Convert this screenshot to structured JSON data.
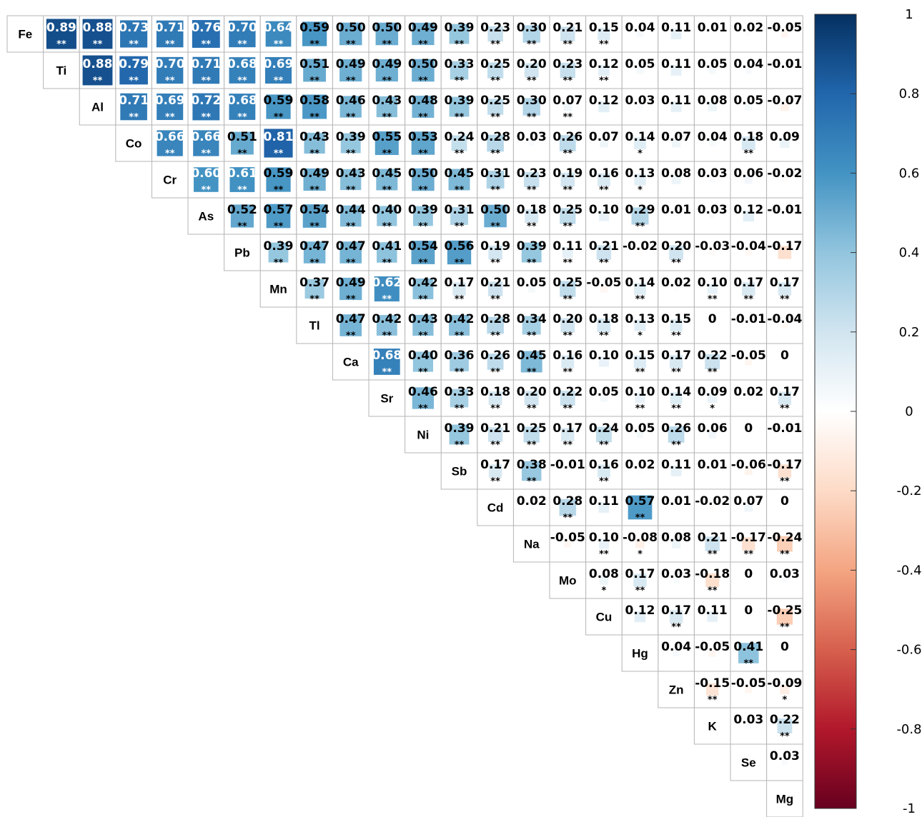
{
  "chart_data": {
    "type": "heatmap",
    "title": "",
    "variables": [
      "Fe",
      "Ti",
      "Al",
      "Co",
      "Cr",
      "As",
      "Pb",
      "Mn",
      "Tl",
      "Ca",
      "Sr",
      "Ni",
      "Sb",
      "Cd",
      "Na",
      "Mo",
      "Cu",
      "Hg",
      "Zn",
      "K",
      "Se",
      "Mg"
    ],
    "values": [
      [
        0.89,
        0.88,
        0.73,
        0.71,
        0.76,
        0.7,
        0.64,
        0.59,
        0.5,
        0.5,
        0.49,
        0.39,
        0.23,
        0.3,
        0.21,
        0.15,
        0.04,
        0.11,
        0.01,
        0.02,
        -0.05
      ],
      [
        0.88,
        0.79,
        0.7,
        0.71,
        0.68,
        0.69,
        0.51,
        0.49,
        0.49,
        0.5,
        0.33,
        0.25,
        0.2,
        0.23,
        0.12,
        0.05,
        0.11,
        0.05,
        0.04,
        -0.01
      ],
      [
        0.71,
        0.69,
        0.72,
        0.68,
        0.59,
        0.58,
        0.46,
        0.43,
        0.48,
        0.39,
        0.25,
        0.3,
        0.07,
        0.12,
        0.03,
        0.11,
        0.08,
        0.05,
        -0.07
      ],
      [
        0.66,
        0.66,
        0.51,
        0.81,
        0.43,
        0.39,
        0.55,
        0.53,
        0.24,
        0.28,
        0.03,
        0.26,
        0.07,
        0.14,
        0.07,
        0.04,
        0.18,
        0.09
      ],
      [
        0.6,
        0.61,
        0.59,
        0.49,
        0.43,
        0.45,
        0.5,
        0.45,
        0.31,
        0.23,
        0.19,
        0.16,
        0.13,
        0.08,
        0.03,
        0.06,
        -0.02
      ],
      [
        0.52,
        0.57,
        0.54,
        0.44,
        0.4,
        0.39,
        0.31,
        0.5,
        0.18,
        0.25,
        0.1,
        0.29,
        0.01,
        0.03,
        0.12,
        -0.01
      ],
      [
        0.39,
        0.47,
        0.47,
        0.41,
        0.54,
        0.56,
        0.19,
        0.39,
        0.11,
        0.21,
        -0.02,
        0.2,
        -0.03,
        -0.04,
        -0.17
      ],
      [
        0.37,
        0.49,
        0.62,
        0.42,
        0.17,
        0.21,
        0.05,
        0.25,
        -0.05,
        0.14,
        0.02,
        0.1,
        0.17,
        0.17
      ],
      [
        0.47,
        0.42,
        0.43,
        0.42,
        0.28,
        0.34,
        0.2,
        0.18,
        0.13,
        0.15,
        0,
        -0.01,
        -0.04
      ],
      [
        0.68,
        0.4,
        0.36,
        0.26,
        0.45,
        0.16,
        0.1,
        0.15,
        0.17,
        0.22,
        -0.05,
        0
      ],
      [
        0.46,
        0.33,
        0.18,
        0.2,
        0.22,
        0.05,
        0.1,
        0.14,
        0.09,
        0.02,
        0.17
      ],
      [
        0.39,
        0.21,
        0.25,
        0.17,
        0.24,
        0.05,
        0.26,
        0.06,
        0,
        -0.01
      ],
      [
        0.17,
        0.38,
        -0.01,
        0.16,
        0.02,
        0.11,
        0.01,
        -0.06,
        -0.17
      ],
      [
        0.02,
        0.28,
        0.11,
        0.57,
        0.01,
        -0.02,
        0.07,
        0
      ],
      [
        -0.05,
        0.1,
        -0.08,
        0.08,
        0.21,
        -0.17,
        -0.24
      ],
      [
        0.08,
        0.17,
        0.03,
        -0.18,
        0,
        0.03
      ],
      [
        0.12,
        0.17,
        0.11,
        0,
        -0.25
      ],
      [
        0.04,
        -0.05,
        0.41,
        0
      ],
      [
        -0.15,
        -0.05,
        -0.09
      ],
      [
        0.03,
        0.22
      ],
      [
        0.03
      ]
    ],
    "labels": [
      [
        "0.89",
        "0.88",
        "0.73",
        "0.71",
        "0.76",
        "0.70",
        "0.64",
        "0.59",
        "0.50",
        "0.50",
        "0.49",
        "0.39",
        "0.23",
        "0.30",
        "0.21",
        "0.15",
        "0.04",
        "0.11",
        "0.01",
        "0.02",
        "-0.05"
      ],
      [
        "0.88",
        "0.79",
        "0.70",
        "0.71",
        "0.68",
        "0.69",
        "0.51",
        "0.49",
        "0.49",
        "0.50",
        "0.33",
        "0.25",
        "0.20",
        "0.23",
        "0.12",
        "0.05",
        "0.11",
        "0.05",
        "0.04",
        "-0.01"
      ],
      [
        "0.71",
        "0.69",
        "0.72",
        "0.68",
        "0.59",
        "0.58",
        "0.46",
        "0.43",
        "0.48",
        "0.39",
        "0.25",
        "0.30",
        "0.07",
        "0.12",
        "0.03",
        "0.11",
        "0.08",
        "0.05",
        "-0.07"
      ],
      [
        "0.66",
        "0.66",
        "0.51",
        "0.81",
        "0.43",
        "0.39",
        "0.55",
        "0.53",
        "0.24",
        "0.28",
        "0.03",
        "0.26",
        "0.07",
        "0.14",
        "0.07",
        "0.04",
        "0.18",
        "0.09"
      ],
      [
        "0.60",
        "0.61",
        "0.59",
        "0.49",
        "0.43",
        "0.45",
        "0.50",
        "0.45",
        "0.31",
        "0.23",
        "0.19",
        "0.16",
        "0.13",
        "0.08",
        "0.03",
        "0.06",
        "-0.02"
      ],
      [
        "0.52",
        "0.57",
        "0.54",
        "0.44",
        "0.40",
        "0.39",
        "0.31",
        "0.50",
        "0.18",
        "0.25",
        "0.10",
        "0.29",
        "0.01",
        "0.03",
        "0.12",
        "-0.01"
      ],
      [
        "0.39",
        "0.47",
        "0.47",
        "0.41",
        "0.54",
        "0.56",
        "0.19",
        "0.39",
        "0.11",
        "0.21",
        "-0.02",
        "0.20",
        "-0.03",
        "-0.04",
        "-0.17"
      ],
      [
        "0.37",
        "0.49",
        "0.62",
        "0.42",
        "0.17",
        "0.21",
        "0.05",
        "0.25",
        "-0.05",
        "0.14",
        "0.02",
        "0.10",
        "0.17",
        "0.17"
      ],
      [
        "0.47",
        "0.42",
        "0.43",
        "0.42",
        "0.28",
        "0.34",
        "0.20",
        "0.18",
        "0.13",
        "0.15",
        "0",
        "-0.01",
        "-0.04"
      ],
      [
        "0.68",
        "0.40",
        "0.36",
        "0.26",
        "0.45",
        "0.16",
        "0.10",
        "0.15",
        "0.17",
        "0.22",
        "-0.05",
        "0"
      ],
      [
        "0.46",
        "0.33",
        "0.18",
        "0.20",
        "0.22",
        "0.05",
        "0.10",
        "0.14",
        "0.09",
        "0.02",
        "0.17"
      ],
      [
        "0.39",
        "0.21",
        "0.25",
        "0.17",
        "0.24",
        "0.05",
        "0.26",
        "0.06",
        "0",
        "-0.01"
      ],
      [
        "0.17",
        "0.38",
        "-0.01",
        "0.16",
        "0.02",
        "0.11",
        "0.01",
        "-0.06",
        "-0.17"
      ],
      [
        "0.02",
        "0.28",
        "0.11",
        "0.57",
        "0.01",
        "-0.02",
        "0.07",
        "0"
      ],
      [
        "-0.05",
        "0.10",
        "-0.08",
        "0.08",
        "0.21",
        "-0.17",
        "-0.24"
      ],
      [
        "0.08",
        "0.17",
        "0.03",
        "-0.18",
        "0",
        "0.03"
      ],
      [
        "0.12",
        "0.17",
        "0.11",
        "0",
        "-0.25"
      ],
      [
        "0.04",
        "-0.05",
        "0.41",
        "0"
      ],
      [
        "-0.15",
        "-0.05",
        "-0.09"
      ],
      [
        "0.03",
        "0.22"
      ],
      [
        "0.03"
      ]
    ],
    "significance": [
      [
        "**",
        "**",
        "**",
        "**",
        "**",
        "**",
        "**",
        "**",
        "**",
        "**",
        "**",
        "**",
        "**",
        "**",
        "**",
        "**",
        "",
        "",
        "",
        "",
        ""
      ],
      [
        "**",
        "**",
        "**",
        "**",
        "**",
        "**",
        "**",
        "**",
        "**",
        "**",
        "**",
        "**",
        "**",
        "**",
        "**",
        "",
        "",
        "",
        "",
        ""
      ],
      [
        "**",
        "**",
        "**",
        "**",
        "**",
        "**",
        "**",
        "**",
        "**",
        "**",
        "**",
        "**",
        "**",
        "",
        "",
        "",
        "",
        "",
        "",
        ""
      ],
      [
        "**",
        "**",
        "**",
        "**",
        "**",
        "**",
        "**",
        "**",
        "**",
        "**",
        "",
        "**",
        "",
        "*",
        "",
        "",
        "**",
        ""
      ],
      [
        "**",
        "**",
        "**",
        "**",
        "**",
        "**",
        "**",
        "**",
        "**",
        "**",
        "**",
        "**",
        "*",
        "",
        "",
        "",
        ""
      ],
      [
        "**",
        "**",
        "**",
        "**",
        "**",
        "**",
        "**",
        "**",
        "**",
        "**",
        "",
        "**",
        "",
        "",
        "",
        ""
      ],
      [
        "**",
        "**",
        "**",
        "**",
        "**",
        "**",
        "**",
        "**",
        "**",
        "**",
        "",
        "**",
        "",
        "",
        ""
      ],
      [
        "**",
        "**",
        "**",
        "**",
        "**",
        "**",
        "",
        "**",
        "",
        "**",
        "",
        "**",
        "**",
        "**"
      ],
      [
        "**",
        "**",
        "**",
        "**",
        "**",
        "**",
        "**",
        "**",
        "*",
        "**",
        "",
        "",
        ""
      ],
      [
        "**",
        "**",
        "**",
        "**",
        "**",
        "**",
        "",
        "**",
        "**",
        "**",
        "",
        ""
      ],
      [
        "**",
        "**",
        "**",
        "**",
        "**",
        "",
        "**",
        "**",
        "*",
        "",
        "**"
      ],
      [
        "**",
        "**",
        "**",
        "**",
        "**",
        "",
        "**",
        "",
        "",
        ""
      ],
      [
        "**",
        "**",
        "",
        "**",
        "",
        "",
        "",
        "",
        "**"
      ],
      [
        "",
        "**",
        "",
        "**",
        "",
        "",
        "",
        ""
      ],
      [
        "",
        "**",
        "*",
        "",
        "**",
        "**",
        "**"
      ],
      [
        "*",
        "**",
        "",
        "**",
        "",
        ""
      ],
      [
        "",
        "**",
        "",
        "",
        "**"
      ],
      [
        "",
        "",
        "**",
        ""
      ],
      [
        "**",
        "",
        "*"
      ],
      [
        "",
        "**"
      ],
      [
        ""
      ]
    ],
    "colorbar": {
      "min": -1,
      "max": 1,
      "ticks": [
        "1",
        "0.8",
        "0.6",
        "0.4",
        "0.2",
        "0",
        "-0.2",
        "-0.4",
        "-0.6",
        "-0.8",
        "-1"
      ],
      "colors": [
        "#67001F",
        "#B2182B",
        "#D6604D",
        "#F4A582",
        "#FDDBC7",
        "#FFFFFF",
        "#D1E5F0",
        "#92C5DE",
        "#4393C3",
        "#2166AC",
        "#053061"
      ]
    }
  }
}
